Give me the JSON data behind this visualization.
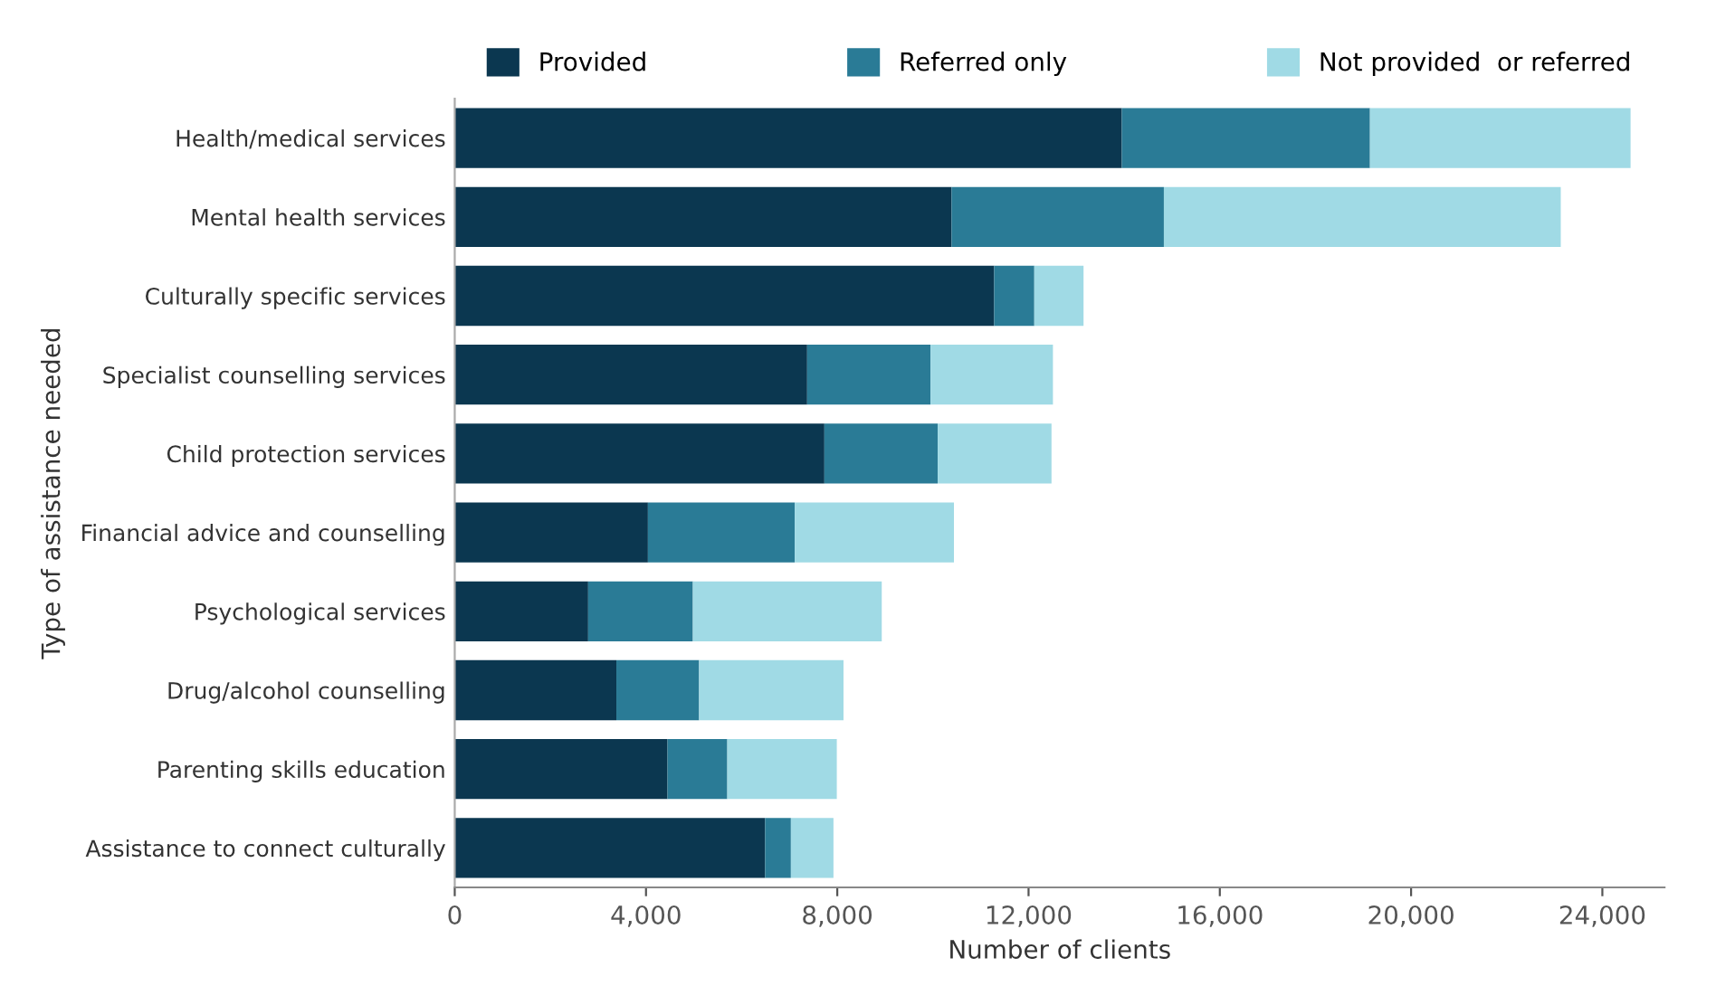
{
  "chart_data": {
    "type": "bar",
    "orientation": "horizontal",
    "stacked": true,
    "xlabel": "Number of clients",
    "ylabel": "Type of assistance needed",
    "categories": [
      "Health/medical services",
      "Mental health services",
      "Culturally specific services",
      "Specialist counselling services",
      "Child protection services",
      "Financial advice and counselling",
      "Psychological services",
      "Drug/alcohol counselling",
      "Parenting skills education",
      "Assistance to connect culturally"
    ],
    "series": [
      {
        "name": "Provided",
        "color": "#0b3750",
        "values": [
          13950,
          10390,
          11280,
          7370,
          7730,
          4040,
          2790,
          3380,
          4450,
          6490
        ]
      },
      {
        "name": "Referred only",
        "color": "#2a7b96",
        "values": [
          5190,
          4440,
          840,
          2580,
          2370,
          3070,
          2190,
          1730,
          1250,
          540
        ]
      },
      {
        "name": "Not provided  or referred",
        "color": "#a0dae5",
        "values": [
          5450,
          8300,
          1030,
          2560,
          2380,
          3330,
          3950,
          3020,
          2290,
          890
        ]
      }
    ],
    "xlim": [
      0,
      25300
    ],
    "xticks": [
      {
        "value": 0,
        "label": "0"
      },
      {
        "value": 4000,
        "label": "4,000"
      },
      {
        "value": 8000,
        "label": "8,000"
      },
      {
        "value": 12000,
        "label": "12,000"
      },
      {
        "value": 16000,
        "label": "16,000"
      },
      {
        "value": 20000,
        "label": "20,000"
      },
      {
        "value": 24000,
        "label": "24,000"
      }
    ],
    "grid": false,
    "legend": "top"
  }
}
